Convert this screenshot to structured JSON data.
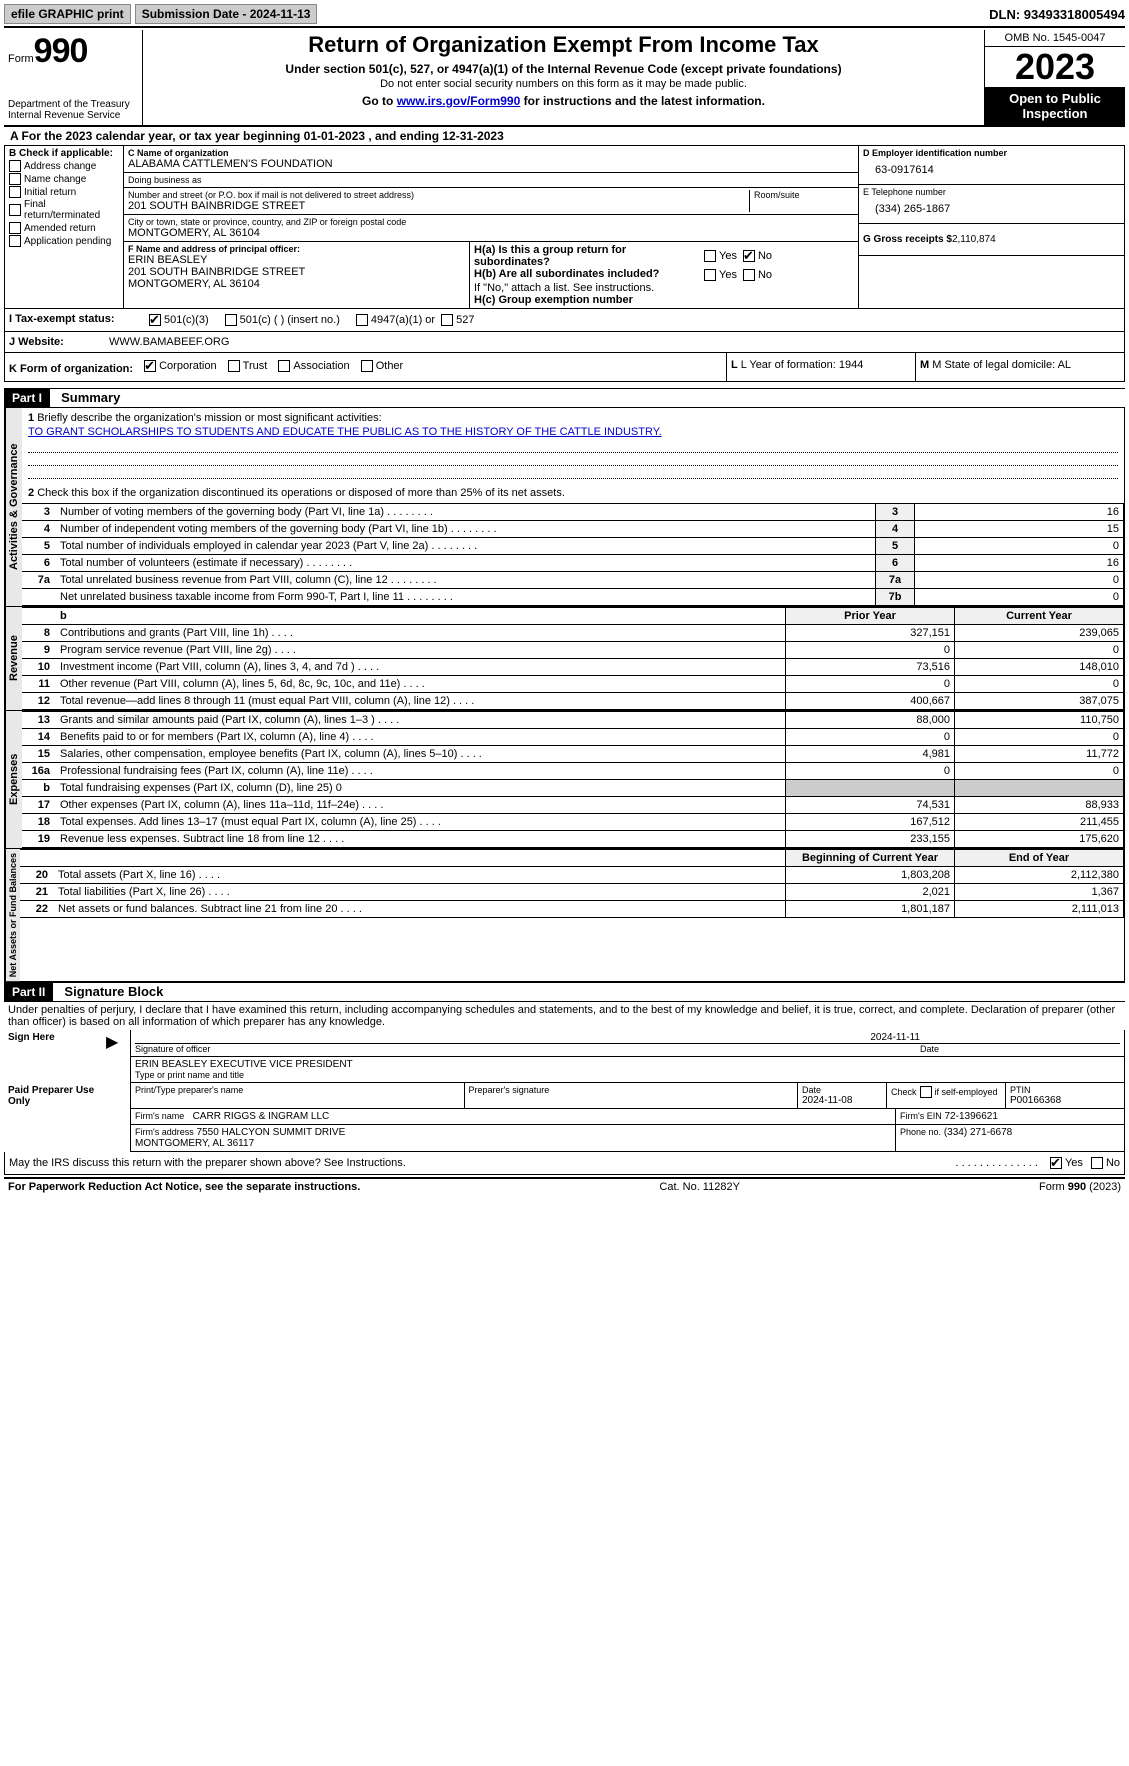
{
  "topbar": {
    "efile": "efile GRAPHIC print",
    "submission": "Submission Date - 2024-11-13",
    "dln": "DLN: 93493318005494"
  },
  "header": {
    "form_word": "Form",
    "form_num": "990",
    "dept": "Department of the Treasury",
    "irs": "Internal Revenue Service",
    "title": "Return of Organization Exempt From Income Tax",
    "subtitle": "Under section 501(c), 527, or 4947(a)(1) of the Internal Revenue Code (except private foundations)",
    "note": "Do not enter social security numbers on this form as it may be made public.",
    "goto_pre": "Go to ",
    "goto_link": "www.irs.gov/Form990",
    "goto_post": " for instructions and the latest information.",
    "omb": "OMB No. 1545-0047",
    "year": "2023",
    "open": "Open to Public Inspection"
  },
  "row_a": "A For the 2023 calendar year, or tax year beginning 01-01-2023   , and ending 12-31-2023",
  "col_b": {
    "header": "B Check if applicable:",
    "items": [
      "Address change",
      "Name change",
      "Initial return",
      "Final return/terminated",
      "Amended return",
      "Application pending"
    ]
  },
  "col_c": {
    "name_label": "C Name of organization",
    "name": "ALABAMA CATTLEMEN'S FOUNDATION",
    "dba_label": "Doing business as",
    "dba": "",
    "addr_label": "Number and street (or P.O. box if mail is not delivered to street address)",
    "room_label": "Room/suite",
    "addr": "201 SOUTH BAINBRIDGE STREET",
    "city_label": "City or town, state or province, country, and ZIP or foreign postal code",
    "city": "MONTGOMERY, AL  36104",
    "officer_label": "F  Name and address of principal officer:",
    "officer": "ERIN BEASLEY\n201 SOUTH BAINBRIDGE STREET\nMONTGOMERY, AL  36104"
  },
  "col_d": {
    "ein_label": "D Employer identification number",
    "ein": "63-0917614",
    "phone_label": "E Telephone number",
    "phone": "(334) 265-1867",
    "gross_label": "G Gross receipts $",
    "gross": "2,110,874",
    "ha": "H(a)  Is this a group return for subordinates?",
    "hb": "H(b)  Are all subordinates included?",
    "hb_note": "If \"No,\" attach a list. See instructions.",
    "hc": "H(c)  Group exemption number",
    "yes": "Yes",
    "no": "No"
  },
  "row_i": {
    "label": "I   Tax-exempt status:",
    "opt1": "501(c)(3)",
    "opt2": "501(c) (  ) (insert no.)",
    "opt3": "4947(a)(1) or",
    "opt4": "527"
  },
  "row_j": {
    "label": "J   Website:",
    "val": "WWW.BAMABEEF.ORG"
  },
  "row_k": {
    "label": "K Form of organization:",
    "opts": [
      "Corporation",
      "Trust",
      "Association",
      "Other"
    ],
    "l": "L Year of formation: 1944",
    "m": "M State of legal domicile: AL"
  },
  "part1": {
    "header": "Part I",
    "title": "Summary",
    "q1": "Briefly describe the organization's mission or most significant activities:",
    "mission": "TO GRANT SCHOLARSHIPS TO STUDENTS AND EDUCATE THE PUBLIC AS TO THE HISTORY OF THE CATTLE INDUSTRY.",
    "q2": "Check this box        if the organization discontinued its operations or disposed of more than 25% of its net assets.",
    "prior": "Prior Year",
    "current": "Current Year",
    "boy": "Beginning of Current Year",
    "eoy": "End of Year",
    "vlabels": {
      "gov": "Activities & Governance",
      "rev": "Revenue",
      "exp": "Expenses",
      "net": "Net Assets or Fund Balances"
    },
    "gov_rows": [
      {
        "n": "3",
        "d": "Number of voting members of the governing body (Part VI, line 1a)",
        "b": "3",
        "v": "16"
      },
      {
        "n": "4",
        "d": "Number of independent voting members of the governing body (Part VI, line 1b)",
        "b": "4",
        "v": "15"
      },
      {
        "n": "5",
        "d": "Total number of individuals employed in calendar year 2023 (Part V, line 2a)",
        "b": "5",
        "v": "0"
      },
      {
        "n": "6",
        "d": "Total number of volunteers (estimate if necessary)",
        "b": "6",
        "v": "16"
      },
      {
        "n": "7a",
        "d": "Total unrelated business revenue from Part VIII, column (C), line 12",
        "b": "7a",
        "v": "0"
      },
      {
        "n": "",
        "d": "Net unrelated business taxable income from Form 990-T, Part I, line 11",
        "b": "7b",
        "v": "0"
      }
    ],
    "rev_rows": [
      {
        "n": "8",
        "d": "Contributions and grants (Part VIII, line 1h)",
        "p": "327,151",
        "c": "239,065"
      },
      {
        "n": "9",
        "d": "Program service revenue (Part VIII, line 2g)",
        "p": "0",
        "c": "0"
      },
      {
        "n": "10",
        "d": "Investment income (Part VIII, column (A), lines 3, 4, and 7d )",
        "p": "73,516",
        "c": "148,010"
      },
      {
        "n": "11",
        "d": "Other revenue (Part VIII, column (A), lines 5, 6d, 8c, 9c, 10c, and 11e)",
        "p": "0",
        "c": "0"
      },
      {
        "n": "12",
        "d": "Total revenue—add lines 8 through 11 (must equal Part VIII, column (A), line 12)",
        "p": "400,667",
        "c": "387,075"
      }
    ],
    "exp_rows": [
      {
        "n": "13",
        "d": "Grants and similar amounts paid (Part IX, column (A), lines 1–3 )",
        "p": "88,000",
        "c": "110,750"
      },
      {
        "n": "14",
        "d": "Benefits paid to or for members (Part IX, column (A), line 4)",
        "p": "0",
        "c": "0"
      },
      {
        "n": "15",
        "d": "Salaries, other compensation, employee benefits (Part IX, column (A), lines 5–10)",
        "p": "4,981",
        "c": "11,772"
      },
      {
        "n": "16a",
        "d": "Professional fundraising fees (Part IX, column (A), line 11e)",
        "p": "0",
        "c": "0"
      },
      {
        "n": "b",
        "d": "Total fundraising expenses (Part IX, column (D), line 25) 0",
        "p": "",
        "c": "",
        "shaded": true
      },
      {
        "n": "17",
        "d": "Other expenses (Part IX, column (A), lines 11a–11d, 11f–24e)",
        "p": "74,531",
        "c": "88,933"
      },
      {
        "n": "18",
        "d": "Total expenses. Add lines 13–17 (must equal Part IX, column (A), line 25)",
        "p": "167,512",
        "c": "211,455"
      },
      {
        "n": "19",
        "d": "Revenue less expenses. Subtract line 18 from line 12",
        "p": "233,155",
        "c": "175,620"
      }
    ],
    "net_rows": [
      {
        "n": "20",
        "d": "Total assets (Part X, line 16)",
        "p": "1,803,208",
        "c": "2,112,380"
      },
      {
        "n": "21",
        "d": "Total liabilities (Part X, line 26)",
        "p": "2,021",
        "c": "1,367"
      },
      {
        "n": "22",
        "d": "Net assets or fund balances. Subtract line 21 from line 20",
        "p": "1,801,187",
        "c": "2,111,013"
      }
    ]
  },
  "part2": {
    "header": "Part II",
    "title": "Signature Block",
    "decl": "Under penalties of perjury, I declare that I have examined this return, including accompanying schedules and statements, and to the best of my knowledge and belief, it is true, correct, and complete. Declaration of preparer (other than officer) is based on all information of which preparer has any knowledge.",
    "sign_here": "Sign Here",
    "sig_officer": "Signature of officer",
    "officer_name": "ERIN BEASLEY EXECUTIVE VICE PRESIDENT",
    "type_name": "Type or print name and title",
    "date": "Date",
    "date_val": "2024-11-11",
    "paid": "Paid Preparer Use Only",
    "prep_name_label": "Print/Type preparer's name",
    "prep_sig_label": "Preparer's signature",
    "prep_date": "2024-11-08",
    "self_emp": "Check        if self-employed",
    "ptin_label": "PTIN",
    "ptin": "P00166368",
    "firm_name_label": "Firm's name",
    "firm_name": "CARR RIGGS & INGRAM LLC",
    "firm_ein_label": "Firm's EIN",
    "firm_ein": "72-1396621",
    "firm_addr_label": "Firm's address",
    "firm_addr": "7550 HALCYON SUMMIT DRIVE\nMONTGOMERY, AL  36117",
    "firm_phone_label": "Phone no.",
    "firm_phone": "(334) 271-6678",
    "discuss": "May the IRS discuss this return with the preparer shown above? See Instructions."
  },
  "footer": {
    "left": "For Paperwork Reduction Act Notice, see the separate instructions.",
    "mid": "Cat. No. 11282Y",
    "right_pre": "Form ",
    "right_form": "990",
    "right_post": " (2023)"
  }
}
